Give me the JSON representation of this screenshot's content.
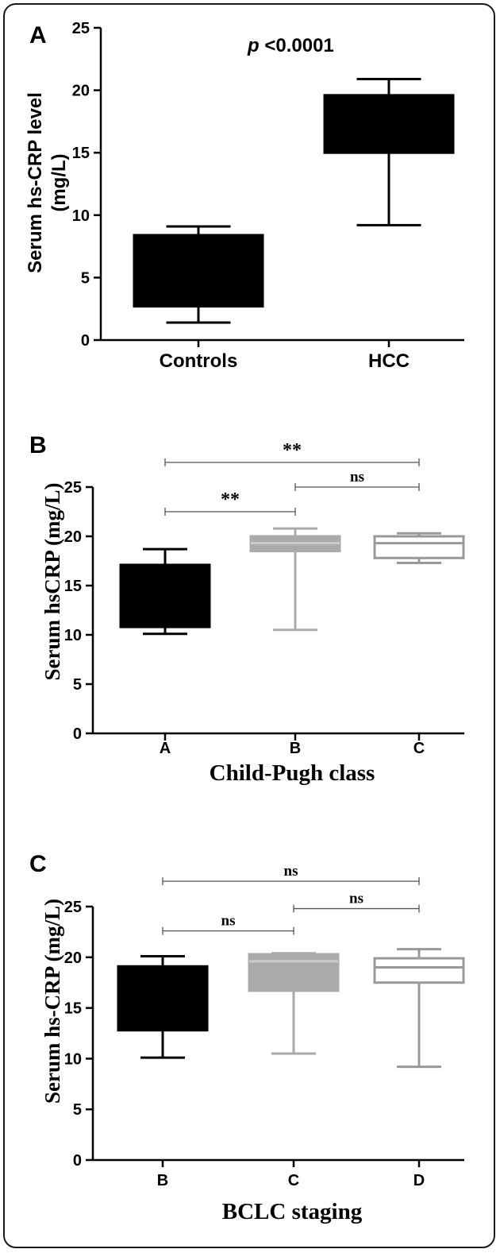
{
  "chart_data": [
    {
      "panel_letter": "A",
      "type": "box",
      "ylabel_lines": [
        "Serum hs-CRP level",
        "(mg/L)"
      ],
      "xlabel": "",
      "ylim": [
        0,
        25
      ],
      "yticks": [
        "0",
        "5",
        "10",
        "15",
        "20",
        "25"
      ],
      "categories": [
        "Controls",
        "HCC"
      ],
      "boxes": [
        {
          "min": 1.4,
          "q1": 2.7,
          "median": 5.5,
          "q3": 8.4,
          "max": 9.1,
          "color": "#000000",
          "style": "filled"
        },
        {
          "min": 9.2,
          "q1": 15.0,
          "median": 17.0,
          "q3": 19.6,
          "max": 20.9,
          "color": "#000000",
          "style": "filled"
        }
      ],
      "annotation": {
        "italic": "p",
        "text": " <0.0001"
      }
    },
    {
      "panel_letter": "B",
      "type": "box",
      "ylabel": "Serum hsCRP (mg/L)",
      "xlabel": "Child-Pugh class",
      "ylim": [
        0,
        25
      ],
      "yticks": [
        "0",
        "5",
        "10",
        "15",
        "20",
        "25"
      ],
      "categories": [
        "A",
        "B",
        "C"
      ],
      "boxes": [
        {
          "min": 10.1,
          "q1": 10.8,
          "median": 13.0,
          "q3": 17.1,
          "max": 18.7,
          "color": "#000000",
          "style": "filled"
        },
        {
          "min": 10.5,
          "q1": 18.5,
          "median": 19.3,
          "q3": 20.0,
          "max": 20.8,
          "color": "#aaaaaa",
          "style": "filled"
        },
        {
          "min": 17.3,
          "q1": 17.8,
          "median": 19.3,
          "q3": 20.0,
          "max": 20.3,
          "color": "#999999",
          "style": "open"
        }
      ],
      "comparisons": [
        {
          "from": 0,
          "to": 2,
          "label": "**",
          "level": 27.5
        },
        {
          "from": 1,
          "to": 2,
          "label": "ns",
          "level": 25.0
        },
        {
          "from": 0,
          "to": 1,
          "label": "**",
          "level": 22.5
        }
      ]
    },
    {
      "panel_letter": "C",
      "type": "box",
      "ylabel": "Serum hs-CRP (mg/L)",
      "xlabel": "BCLC staging",
      "ylim": [
        0,
        25
      ],
      "yticks": [
        "0",
        "5",
        "10",
        "15",
        "20",
        "25"
      ],
      "categories": [
        "B",
        "C",
        "D"
      ],
      "boxes": [
        {
          "min": 10.1,
          "q1": 12.8,
          "median": 16.0,
          "q3": 19.1,
          "max": 20.1,
          "color": "#000000",
          "style": "filled"
        },
        {
          "min": 10.5,
          "q1": 16.7,
          "median": 19.6,
          "q3": 20.3,
          "max": 20.4,
          "color": "#aaaaaa",
          "style": "filled"
        },
        {
          "min": 9.2,
          "q1": 17.5,
          "median": 19.0,
          "q3": 19.9,
          "max": 20.8,
          "color": "#999999",
          "style": "open"
        }
      ],
      "comparisons": [
        {
          "from": 0,
          "to": 2,
          "label": "ns",
          "level": 27.5
        },
        {
          "from": 1,
          "to": 2,
          "label": "ns",
          "level": 24.8
        },
        {
          "from": 0,
          "to": 1,
          "label": "ns",
          "level": 22.6
        }
      ]
    }
  ]
}
